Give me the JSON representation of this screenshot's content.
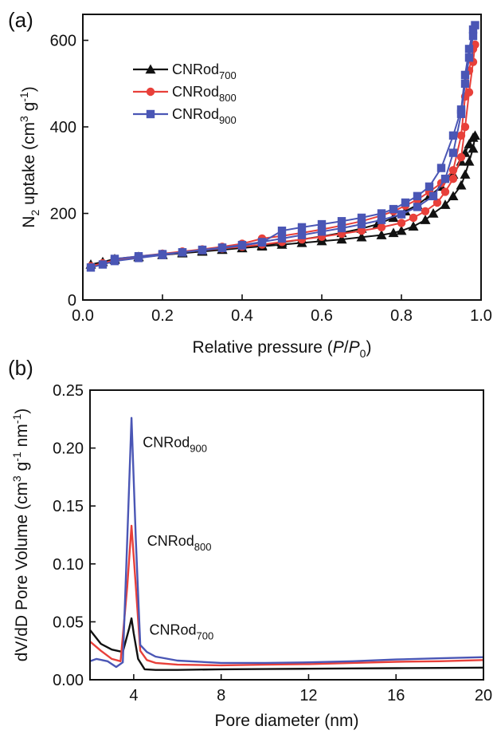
{
  "chart_data": [
    {
      "type": "line",
      "panel_label": "(a)",
      "xlabel": {
        "main": "Relative pressure (",
        "italic1": "P",
        "slash": "/",
        "italic2": "P",
        "sub": "0",
        "end": ")"
      },
      "ylabel": {
        "main": "N",
        "sub": "2",
        "rest": " uptake (cm",
        "sup": "3",
        "rest2": " g",
        "sup2": "-1",
        "end": ")"
      },
      "xlim": [
        0.0,
        1.0
      ],
      "ylim": [
        0,
        660
      ],
      "xticks": [
        "0.0",
        "0.2",
        "0.4",
        "0.6",
        "0.8",
        "1.0"
      ],
      "xtick_values": [
        0.0,
        0.2,
        0.4,
        0.6,
        0.8,
        1.0
      ],
      "yticks": [
        "0",
        "200",
        "400",
        "600"
      ],
      "ytick_values": [
        0,
        200,
        400,
        600
      ],
      "legend_position": "top-left",
      "series": [
        {
          "name": "CNRod700",
          "name_main": "CNRod",
          "name_sub": "700",
          "color": "#111111",
          "marker": "triangle",
          "x": [
            0.02,
            0.05,
            0.08,
            0.14,
            0.2,
            0.25,
            0.3,
            0.35,
            0.4,
            0.45,
            0.5,
            0.55,
            0.6,
            0.65,
            0.7,
            0.75,
            0.78,
            0.8,
            0.83,
            0.86,
            0.88,
            0.91,
            0.93,
            0.95,
            0.96,
            0.97,
            0.98,
            0.985,
            0.98,
            0.97,
            0.96,
            0.95,
            0.93,
            0.9,
            0.87,
            0.84,
            0.81,
            0.78,
            0.74,
            0.7,
            0.65,
            0.6,
            0.55,
            0.5,
            0.45,
            0.4,
            0.35,
            0.3,
            0.25,
            0.2,
            0.14,
            0.08
          ],
          "y": [
            82,
            88,
            95,
            100,
            105,
            110,
            114,
            117,
            120,
            124,
            128,
            132,
            136,
            140,
            145,
            150,
            155,
            160,
            170,
            185,
            200,
            220,
            240,
            265,
            290,
            320,
            350,
            380,
            375,
            360,
            340,
            320,
            290,
            262,
            240,
            220,
            205,
            190,
            175,
            165,
            155,
            147,
            140,
            133,
            126,
            120,
            116,
            112,
            108,
            104,
            99,
            93
          ]
        },
        {
          "name": "CNRod800",
          "name_main": "CNRod",
          "name_sub": "800",
          "color": "#e8403a",
          "marker": "circle",
          "x": [
            0.02,
            0.05,
            0.08,
            0.14,
            0.2,
            0.25,
            0.3,
            0.35,
            0.4,
            0.45,
            0.5,
            0.55,
            0.6,
            0.65,
            0.7,
            0.75,
            0.8,
            0.83,
            0.86,
            0.89,
            0.91,
            0.93,
            0.95,
            0.96,
            0.97,
            0.98,
            0.985,
            0.98,
            0.97,
            0.96,
            0.95,
            0.93,
            0.9,
            0.87,
            0.84,
            0.81,
            0.78,
            0.75,
            0.7,
            0.65,
            0.6,
            0.55,
            0.5,
            0.45,
            0.4,
            0.35,
            0.3,
            0.25,
            0.2,
            0.14,
            0.08
          ],
          "y": [
            78,
            85,
            92,
            98,
            104,
            110,
            115,
            119,
            123,
            128,
            134,
            140,
            146,
            153,
            160,
            168,
            178,
            190,
            205,
            225,
            250,
            280,
            330,
            400,
            480,
            550,
            590,
            580,
            530,
            470,
            380,
            300,
            270,
            250,
            232,
            218,
            205,
            195,
            182,
            172,
            163,
            155,
            148,
            142,
            130,
            123,
            117,
            112,
            107,
            101,
            95
          ]
        },
        {
          "name": "CNRod900",
          "name_main": "CNRod",
          "name_sub": "900",
          "color": "#4a56b5",
          "marker": "square",
          "x": [
            0.02,
            0.05,
            0.08,
            0.14,
            0.2,
            0.25,
            0.3,
            0.35,
            0.4,
            0.45,
            0.5,
            0.55,
            0.6,
            0.65,
            0.7,
            0.75,
            0.8,
            0.84,
            0.88,
            0.91,
            0.93,
            0.95,
            0.96,
            0.97,
            0.98,
            0.985,
            0.98,
            0.97,
            0.96,
            0.95,
            0.93,
            0.9,
            0.87,
            0.84,
            0.81,
            0.78,
            0.75,
            0.7,
            0.65,
            0.6,
            0.55,
            0.5,
            0.45,
            0.4,
            0.35,
            0.3,
            0.25,
            0.2,
            0.14,
            0.08
          ],
          "y": [
            75,
            82,
            90,
            97,
            104,
            110,
            116,
            121,
            127,
            134,
            142,
            150,
            158,
            166,
            175,
            185,
            198,
            215,
            240,
            280,
            340,
            430,
            500,
            560,
            610,
            635,
            625,
            580,
            520,
            440,
            380,
            305,
            262,
            240,
            225,
            210,
            200,
            190,
            182,
            175,
            168,
            160,
            133,
            126,
            120,
            115,
            110,
            106,
            101,
            95
          ]
        }
      ]
    },
    {
      "type": "line",
      "panel_label": "(b)",
      "xlabel": "Pore diameter (nm)",
      "ylabel": {
        "main": "dV/dD Pore Volume (cm",
        "sup": "3",
        "mid": " g",
        "sup2": "-1",
        "mid2": " nm",
        "sup3": "-1",
        "end": ")"
      },
      "xlim": [
        2,
        20
      ],
      "ylim": [
        0,
        0.25
      ],
      "xticks": [
        "4",
        "8",
        "12",
        "16",
        "20"
      ],
      "xtick_values": [
        4,
        8,
        12,
        16,
        20
      ],
      "yticks": [
        "0.00",
        "0.05",
        "0.10",
        "0.15",
        "0.20",
        "0.25"
      ],
      "ytick_values": [
        0.0,
        0.05,
        0.1,
        0.15,
        0.2,
        0.25
      ],
      "series": [
        {
          "name": "CNRod700",
          "name_main": "CNRod",
          "name_sub": "700",
          "color": "#111111",
          "x": [
            2.0,
            2.5,
            3.0,
            3.5,
            3.8,
            3.9,
            4.0,
            4.2,
            4.5,
            5,
            6,
            8,
            10,
            12,
            14,
            16,
            18,
            20
          ],
          "y": [
            0.043,
            0.031,
            0.026,
            0.024,
            0.045,
            0.053,
            0.04,
            0.018,
            0.009,
            0.0085,
            0.0085,
            0.009,
            0.0092,
            0.0095,
            0.0098,
            0.01,
            0.0102,
            0.0105
          ]
        },
        {
          "name": "CNRod800",
          "name_main": "CNRod",
          "name_sub": "800",
          "color": "#e8403a",
          "x": [
            2.0,
            2.5,
            3.0,
            3.4,
            3.7,
            3.9,
            4.1,
            4.3,
            4.6,
            5,
            6,
            8,
            10,
            12,
            14,
            16,
            18,
            20
          ],
          "y": [
            0.033,
            0.025,
            0.018,
            0.016,
            0.08,
            0.133,
            0.08,
            0.025,
            0.017,
            0.0145,
            0.013,
            0.0125,
            0.013,
            0.0135,
            0.0145,
            0.0155,
            0.016,
            0.017
          ]
        },
        {
          "name": "CNRod900",
          "name_main": "CNRod",
          "name_sub": "900",
          "color": "#4a56b5",
          "x": [
            2.0,
            2.3,
            2.8,
            3.2,
            3.5,
            3.7,
            3.9,
            4.1,
            4.3,
            4.6,
            5,
            6,
            8,
            10,
            12,
            14,
            16,
            18,
            20
          ],
          "y": [
            0.016,
            0.018,
            0.016,
            0.011,
            0.015,
            0.12,
            0.226,
            0.12,
            0.03,
            0.024,
            0.02,
            0.0165,
            0.0145,
            0.0145,
            0.015,
            0.016,
            0.0175,
            0.0185,
            0.0195
          ]
        }
      ],
      "annotations": [
        {
          "main": "CNRod",
          "sub": "900",
          "x": 4.05,
          "y": 0.205
        },
        {
          "main": "CNRod",
          "sub": "800",
          "x": 4.25,
          "y": 0.12
        },
        {
          "main": "CNRod",
          "sub": "700",
          "x": 4.35,
          "y": 0.043
        }
      ]
    }
  ]
}
